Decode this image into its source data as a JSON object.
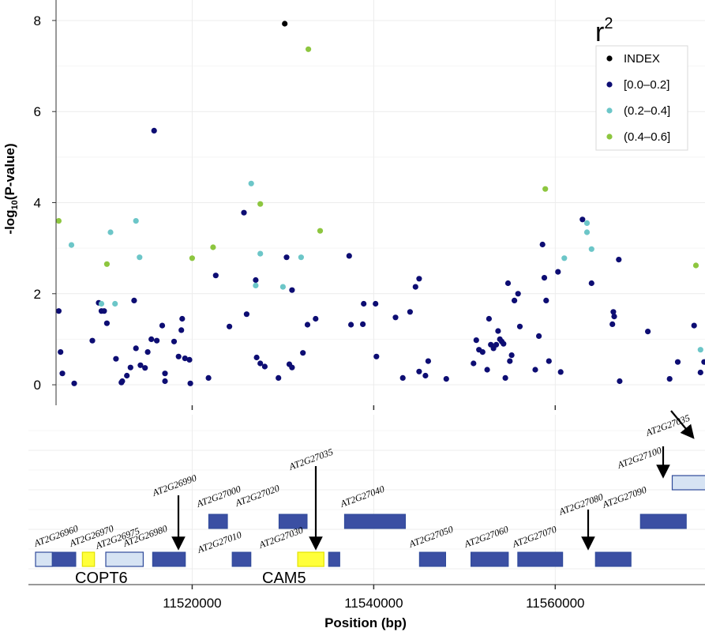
{
  "chart_data": {
    "type": "scatter",
    "ylabel_main": "-log",
    "ylabel_sub": "10",
    "ylabel_rest": "(P-value)",
    "xlabel": "Position (bp)",
    "xlim": [
      11505000,
      11576500
    ],
    "ylim": [
      -0.45,
      8.45
    ],
    "y_ticks": [
      0,
      2,
      4,
      6,
      8
    ],
    "x_ticks": [
      11520000,
      11540000,
      11560000
    ],
    "x_tick_labels": [
      "11520000",
      "11540000",
      "11560000"
    ],
    "legend": {
      "title": "r",
      "title_sup": "2",
      "position": "top-right",
      "entries": [
        {
          "label": "INDEX",
          "color": "#000000"
        },
        {
          "label": "[0.0–0.2]",
          "color": "#0d0d73"
        },
        {
          "label": "(0.2–0.4]",
          "color": "#6cc6c8"
        },
        {
          "label": "(0.4–0.6]",
          "color": "#8dc63f"
        }
      ]
    },
    "series": [
      {
        "name": "INDEX",
        "color": "#000000",
        "points": [
          [
            11530200,
            7.93
          ]
        ]
      },
      {
        "name": "[0.0–0.2]",
        "color": "#0d0d73",
        "points": [
          [
            11505300,
            1.62
          ],
          [
            11505500,
            0.72
          ],
          [
            11505700,
            0.25
          ],
          [
            11507000,
            0.03
          ],
          [
            11509000,
            0.97
          ],
          [
            11509700,
            1.8
          ],
          [
            11510000,
            1.62
          ],
          [
            11510300,
            1.62
          ],
          [
            11510600,
            1.35
          ],
          [
            11511600,
            0.57
          ],
          [
            11512200,
            0.05
          ],
          [
            11512300,
            0.08
          ],
          [
            11512800,
            0.2
          ],
          [
            11513200,
            0.38
          ],
          [
            11513600,
            1.85
          ],
          [
            11513800,
            0.8
          ],
          [
            11514300,
            0.43
          ],
          [
            11514800,
            0.37
          ],
          [
            11515100,
            0.72
          ],
          [
            11515500,
            1.0
          ],
          [
            11515800,
            5.58
          ],
          [
            11516100,
            0.97
          ],
          [
            11516700,
            1.3
          ],
          [
            11517000,
            0.08
          ],
          [
            11517000,
            0.25
          ],
          [
            11518000,
            0.95
          ],
          [
            11518500,
            0.62
          ],
          [
            11518800,
            1.2
          ],
          [
            11518900,
            1.45
          ],
          [
            11519200,
            0.58
          ],
          [
            11519700,
            0.55
          ],
          [
            11519800,
            0.03
          ],
          [
            11521800,
            0.15
          ],
          [
            11522600,
            2.4
          ],
          [
            11524100,
            1.28
          ],
          [
            11525700,
            3.78
          ],
          [
            11526000,
            1.55
          ],
          [
            11527000,
            2.3
          ],
          [
            11527100,
            0.6
          ],
          [
            11527500,
            0.47
          ],
          [
            11528000,
            0.4
          ],
          [
            11529500,
            0.15
          ],
          [
            11530400,
            2.8
          ],
          [
            11530700,
            0.45
          ],
          [
            11531000,
            0.38
          ],
          [
            11531000,
            2.08
          ],
          [
            11532200,
            0.7
          ],
          [
            11532700,
            1.32
          ],
          [
            11533600,
            1.45
          ],
          [
            11537300,
            2.83
          ],
          [
            11537500,
            1.32
          ],
          [
            11538800,
            1.33
          ],
          [
            11538900,
            1.78
          ],
          [
            11540200,
            1.78
          ],
          [
            11540300,
            0.62
          ],
          [
            11542400,
            1.48
          ],
          [
            11543200,
            0.15
          ],
          [
            11544000,
            1.6
          ],
          [
            11544600,
            2.15
          ],
          [
            11545000,
            0.29
          ],
          [
            11545000,
            2.33
          ],
          [
            11545700,
            0.2
          ],
          [
            11546000,
            0.52
          ],
          [
            11548000,
            0.13
          ],
          [
            11551000,
            0.47
          ],
          [
            11551300,
            0.98
          ],
          [
            11551600,
            0.77
          ],
          [
            11552000,
            0.72
          ],
          [
            11552500,
            0.33
          ],
          [
            11552700,
            1.45
          ],
          [
            11552900,
            0.88
          ],
          [
            11553200,
            0.8
          ],
          [
            11553500,
            0.88
          ],
          [
            11553700,
            1.18
          ],
          [
            11553900,
            1.0
          ],
          [
            11554100,
            0.95
          ],
          [
            11554300,
            0.9
          ],
          [
            11554500,
            0.15
          ],
          [
            11554800,
            2.23
          ],
          [
            11555000,
            0.52
          ],
          [
            11555200,
            0.65
          ],
          [
            11555500,
            1.85
          ],
          [
            11555900,
            2.0
          ],
          [
            11556100,
            1.28
          ],
          [
            11557800,
            0.33
          ],
          [
            11558200,
            1.07
          ],
          [
            11558600,
            3.08
          ],
          [
            11558800,
            2.35
          ],
          [
            11559000,
            1.85
          ],
          [
            11559300,
            0.52
          ],
          [
            11560300,
            2.48
          ],
          [
            11560600,
            0.28
          ],
          [
            11563000,
            3.63
          ],
          [
            11564000,
            2.23
          ],
          [
            11566300,
            1.33
          ],
          [
            11566400,
            1.6
          ],
          [
            11566500,
            1.5
          ],
          [
            11567000,
            2.75
          ],
          [
            11567100,
            0.08
          ],
          [
            11570200,
            1.17
          ],
          [
            11572600,
            0.13
          ],
          [
            11573500,
            0.5
          ],
          [
            11575300,
            1.3
          ],
          [
            11576000,
            0.27
          ],
          [
            11576400,
            0.5
          ]
        ]
      },
      {
        "name": "(0.2–0.4]",
        "color": "#6cc6c8",
        "points": [
          [
            11506700,
            3.07
          ],
          [
            11510000,
            1.78
          ],
          [
            11511000,
            3.35
          ],
          [
            11511500,
            1.78
          ],
          [
            11513800,
            3.6
          ],
          [
            11514200,
            2.8
          ],
          [
            11526500,
            4.42
          ],
          [
            11527000,
            2.18
          ],
          [
            11527500,
            2.88
          ],
          [
            11530000,
            2.15
          ],
          [
            11532000,
            2.8
          ],
          [
            11561000,
            2.78
          ],
          [
            11563500,
            3.55
          ],
          [
            11563500,
            3.35
          ],
          [
            11564000,
            2.98
          ],
          [
            11576000,
            0.77
          ]
        ]
      },
      {
        "name": "(0.4–0.6]",
        "color": "#8dc63f",
        "points": [
          [
            11505300,
            3.6
          ],
          [
            11510600,
            2.65
          ],
          [
            11520000,
            2.78
          ],
          [
            11522300,
            3.02
          ],
          [
            11527500,
            3.97
          ],
          [
            11532800,
            7.37
          ],
          [
            11534100,
            3.38
          ],
          [
            11558900,
            4.3
          ],
          [
            11575500,
            2.62
          ]
        ]
      }
    ]
  },
  "gene_track": {
    "genes": [
      {
        "label": "AT2G26960",
        "start": 11505000,
        "end": 11506800,
        "row": 0,
        "fill": "#d6e3f3"
      },
      {
        "label": "AT2G26970",
        "start": 11506800,
        "end": 11509300,
        "row": 0,
        "fill": "#3b4fa3"
      },
      {
        "label": "AT2G26975",
        "start": 11510000,
        "end": 11511300,
        "row": 0,
        "fill": "#ffff3a"
      },
      {
        "label": "AT2G26980",
        "start": 11512500,
        "end": 11516500,
        "row": 0,
        "fill": "#d6e3f3"
      },
      {
        "label": "AT2G26990",
        "start": 11517500,
        "end": 11521000,
        "row": 0,
        "fill": "#3b4fa3"
      },
      {
        "label": "AT2G27000",
        "start": 11523500,
        "end": 11525500,
        "row": 1,
        "fill": "#3b4fa3"
      },
      {
        "label": "AT2G27010",
        "start": 11526000,
        "end": 11528000,
        "row": 0,
        "fill": "#3b4fa3"
      },
      {
        "label": "AT2G27020",
        "start": 11531000,
        "end": 11534000,
        "row": 1,
        "fill": "#3b4fa3"
      },
      {
        "label": "AT2G27030",
        "start": 11533000,
        "end": 11535800,
        "row": 0,
        "fill": "#ffff3a"
      },
      {
        "label": "AT2G27035",
        "start": 11536300,
        "end": 11537500,
        "row": 0,
        "fill": "#3b4fa3"
      },
      {
        "label": "AT2G27040",
        "start": 11538000,
        "end": 11544500,
        "row": 1,
        "fill": "#3b4fa3"
      },
      {
        "label": "AT2G27050",
        "start": 11546000,
        "end": 11548800,
        "row": 0,
        "fill": "#3b4fa3"
      },
      {
        "label": "AT2G27060",
        "start": 11551500,
        "end": 11555500,
        "row": 0,
        "fill": "#3b4fa3"
      },
      {
        "label": "AT2G27070",
        "start": 11556500,
        "end": 11561300,
        "row": 0,
        "fill": "#3b4fa3"
      },
      {
        "label": "AT2G27080",
        "start": 11564800,
        "end": 11568600,
        "row": 0,
        "fill": "#3b4fa3"
      },
      {
        "label": "AT2G27090",
        "start": 11569600,
        "end": 11574500,
        "row": 1,
        "fill": "#3b4fa3"
      },
      {
        "label": "AT2G27100",
        "start": 11573000,
        "end": 11577500,
        "row": 2,
        "fill": "#d6e3f3"
      },
      {
        "label": "AT2G27035",
        "start": 11578500,
        "end": 11580000,
        "row": 3,
        "fill": "#d6e3f3"
      }
    ],
    "gene_names": [
      {
        "text": "COPT6"
      },
      {
        "text": "CAM5"
      }
    ]
  }
}
